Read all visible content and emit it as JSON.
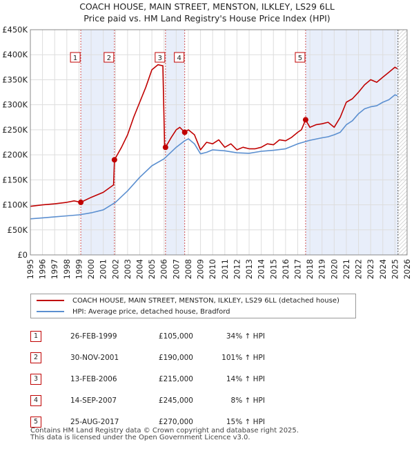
{
  "title_line1": "COACH HOUSE, MAIN STREET, MENSTON, ILKLEY, LS29 6LL",
  "title_line2": "Price paid vs. HM Land Registry's House Price Index (HPI)",
  "legend": {
    "property": "COACH HOUSE, MAIN STREET, MENSTON, ILKLEY, LS29 6LL (detached house)",
    "hpi": "HPI: Average price, detached house, Bradford"
  },
  "colors": {
    "property": "#c00000",
    "hpi": "#5b8fd0",
    "shade": "#e8eefa",
    "grid": "#dddddd",
    "marker_border": "#c00000"
  },
  "sales": [
    {
      "num": "1",
      "date": "26-FEB-1999",
      "price": "£105,000",
      "hpi_change": "34% ↑ HPI"
    },
    {
      "num": "2",
      "date": "30-NOV-2001",
      "price": "£190,000",
      "hpi_change": "101% ↑ HPI"
    },
    {
      "num": "3",
      "date": "13-FEB-2006",
      "price": "£215,000",
      "hpi_change": "14% ↑ HPI"
    },
    {
      "num": "4",
      "date": "14-SEP-2007",
      "price": "£245,000",
      "hpi_change": "8% ↑ HPI"
    },
    {
      "num": "5",
      "date": "25-AUG-2017",
      "price": "£270,000",
      "hpi_change": "15% ↑ HPI"
    }
  ],
  "footer": {
    "line1": "Contains HM Land Registry data © Crown copyright and database right 2025.",
    "line2": "This data is licensed under the Open Government Licence v3.0."
  },
  "chart_data": {
    "type": "line",
    "title": "COACH HOUSE, MAIN STREET, MENSTON, ILKLEY, LS29 6LL — Price paid vs. HM Land Registry's House Price Index (HPI)",
    "xlabel": "",
    "ylabel": "",
    "xlim": [
      1995,
      2026
    ],
    "ylim": [
      0,
      450000
    ],
    "x_ticks": [
      1995,
      1996,
      1997,
      1998,
      1999,
      2000,
      2001,
      2002,
      2003,
      2004,
      2005,
      2006,
      2007,
      2008,
      2009,
      2010,
      2011,
      2012,
      2013,
      2014,
      2015,
      2016,
      2017,
      2018,
      2019,
      2020,
      2021,
      2022,
      2023,
      2024,
      2025,
      2026
    ],
    "y_ticks": [
      {
        "value": 0,
        "label": "£0"
      },
      {
        "value": 50000,
        "label": "£50K"
      },
      {
        "value": 100000,
        "label": "£100K"
      },
      {
        "value": 150000,
        "label": "£150K"
      },
      {
        "value": 200000,
        "label": "£200K"
      },
      {
        "value": 250000,
        "label": "£250K"
      },
      {
        "value": 300000,
        "label": "£300K"
      },
      {
        "value": 350000,
        "label": "£350K"
      },
      {
        "value": 400000,
        "label": "£400K"
      },
      {
        "value": 450000,
        "label": "£450K"
      }
    ],
    "grid": true,
    "shaded_ranges": [
      [
        1999.15,
        2001.92
      ],
      [
        2006.12,
        2007.7
      ],
      [
        2017.65,
        2025.25
      ]
    ],
    "hatched_from": 2025.25,
    "sale_markers": [
      {
        "label": "1",
        "x": 1999.15,
        "y": 105000
      },
      {
        "label": "2",
        "x": 2001.92,
        "y": 190000
      },
      {
        "label": "3",
        "x": 2006.12,
        "y": 215000
      },
      {
        "label": "4",
        "x": 2007.7,
        "y": 245000
      },
      {
        "label": "5",
        "x": 2017.65,
        "y": 270000
      }
    ],
    "series": [
      {
        "name": "COACH HOUSE, MAIN STREET, MENSTON, ILKLEY, LS29 6LL (detached house)",
        "x": [
          1995,
          1996,
          1997,
          1998,
          1998.6,
          1999.15,
          2000,
          2001,
          2001.85,
          2001.92,
          2002.5,
          2003,
          2003.5,
          2004,
          2004.5,
          2005,
          2005.5,
          2005.9,
          2006.05,
          2006.12,
          2006.6,
          2007,
          2007.3,
          2007.7,
          2008,
          2008.5,
          2009,
          2009.5,
          2010,
          2010.5,
          2011,
          2011.5,
          2012,
          2012.5,
          2013,
          2013.5,
          2014,
          2014.5,
          2015,
          2015.5,
          2016,
          2016.5,
          2017,
          2017.3,
          2017.65,
          2018,
          2018.5,
          2019,
          2019.5,
          2020,
          2020.5,
          2021,
          2021.5,
          2022,
          2022.5,
          2023,
          2023.5,
          2024,
          2024.5,
          2025,
          2025.2
        ],
        "values": [
          97000,
          100000,
          102000,
          105000,
          108000,
          105000,
          115000,
          125000,
          140000,
          190000,
          215000,
          240000,
          275000,
          305000,
          335000,
          370000,
          380000,
          378000,
          215000,
          215000,
          235000,
          250000,
          255000,
          245000,
          250000,
          240000,
          210000,
          225000,
          222000,
          230000,
          215000,
          222000,
          210000,
          215000,
          212000,
          212000,
          215000,
          222000,
          220000,
          230000,
          228000,
          235000,
          245000,
          250000,
          270000,
          255000,
          260000,
          262000,
          265000,
          255000,
          275000,
          305000,
          312000,
          325000,
          340000,
          350000,
          345000,
          355000,
          365000,
          375000,
          372000
        ]
      },
      {
        "name": "HPI: Average price, detached house, Bradford",
        "x": [
          1995,
          1996,
          1997,
          1998,
          1999,
          2000,
          2001,
          2002,
          2003,
          2004,
          2005,
          2006,
          2007,
          2007.7,
          2008,
          2008.5,
          2009,
          2009.5,
          2010,
          2011,
          2012,
          2013,
          2014,
          2015,
          2016,
          2017,
          2018,
          2019,
          2019.5,
          2020,
          2020.5,
          2021,
          2021.5,
          2022,
          2022.5,
          2023,
          2023.5,
          2024,
          2024.5,
          2025,
          2025.2
        ],
        "values": [
          72000,
          74000,
          76000,
          78000,
          80000,
          84000,
          90000,
          105000,
          128000,
          155000,
          178000,
          192000,
          215000,
          228000,
          232000,
          222000,
          202000,
          205000,
          210000,
          208000,
          204000,
          203000,
          207000,
          209000,
          212000,
          222000,
          229000,
          234000,
          236000,
          240000,
          245000,
          260000,
          268000,
          282000,
          292000,
          296000,
          298000,
          305000,
          310000,
          320000,
          318000
        ]
      }
    ]
  }
}
